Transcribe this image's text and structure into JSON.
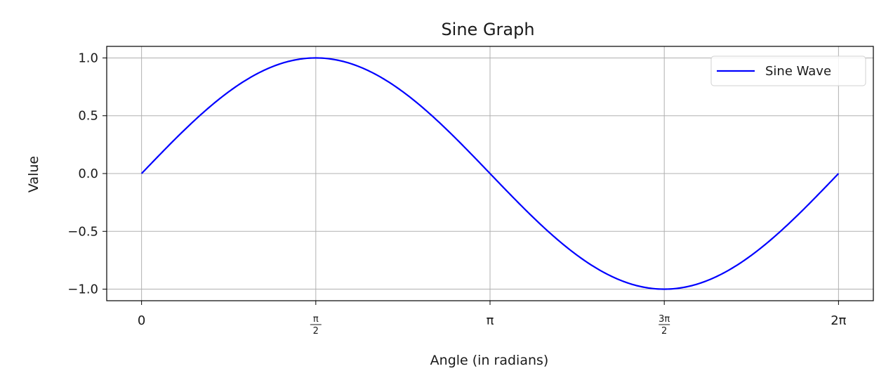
{
  "chart_data": {
    "type": "line",
    "title": "Sine Graph",
    "xlabel": "Angle (in radians)",
    "ylabel": "Value",
    "xlim": [
      -0.3142,
      6.5973
    ],
    "ylim": [
      -1.1,
      1.1
    ],
    "grid": true,
    "legend_position": "top-right",
    "x_ticks": [
      {
        "value": 0,
        "label": "0"
      },
      {
        "value": 1.5708,
        "num": "π",
        "den": "2"
      },
      {
        "value": 3.1416,
        "label": "π"
      },
      {
        "value": 4.7124,
        "num": "3π",
        "den": "2"
      },
      {
        "value": 6.2832,
        "label": "2π"
      }
    ],
    "y_ticks": [
      {
        "value": 1.0,
        "label": "1.0"
      },
      {
        "value": 0.5,
        "label": "0.5"
      },
      {
        "value": 0.0,
        "label": "0.0"
      },
      {
        "value": -0.5,
        "label": "−0.5"
      },
      {
        "value": -1.0,
        "label": "−1.0"
      }
    ],
    "series": [
      {
        "name": "Sine Wave",
        "color": "#0000ff",
        "function": "sin(x)",
        "x_range": [
          0,
          6.2832
        ],
        "x": [
          0,
          0.7854,
          1.5708,
          2.3562,
          3.1416,
          3.927,
          4.7124,
          5.4978,
          6.2832
        ],
        "y": [
          0,
          0.7071,
          1.0,
          0.7071,
          0,
          -0.7071,
          -1.0,
          -0.7071,
          0
        ]
      }
    ]
  }
}
